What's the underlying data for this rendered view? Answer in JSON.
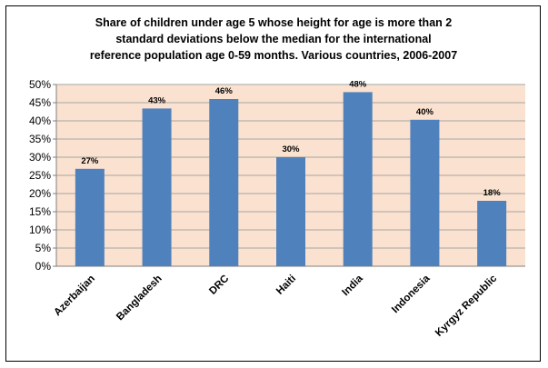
{
  "chart_data": {
    "type": "bar",
    "title_lines": [
      "Share of children under age 5 whose height for age is more than 2",
      "standard deviations below the median for the international",
      "reference population age 0-59 months. Various countries, 2006-2007"
    ],
    "categories": [
      "Azerbaijan",
      "Bangladesh",
      "DRC",
      "Haiti",
      "India",
      "Indonesia",
      "Kyrgyz Republic"
    ],
    "values": [
      0.268,
      0.434,
      0.46,
      0.3,
      0.479,
      0.403,
      0.18
    ],
    "data_labels": [
      "27%",
      "43%",
      "46%",
      "30%",
      "48%",
      "40%",
      "18%"
    ],
    "y_ticks": [
      0,
      0.05,
      0.1,
      0.15,
      0.2,
      0.25,
      0.3,
      0.35,
      0.4,
      0.45,
      0.5
    ],
    "y_tick_labels": [
      "0%",
      "5%",
      "10%",
      "15%",
      "20%",
      "25%",
      "30%",
      "35%",
      "40%",
      "45%",
      "50%"
    ],
    "ylim": [
      0,
      0.5
    ],
    "grid": true,
    "legend": false,
    "colors": {
      "bar": "#4f81bd",
      "plot_background": "#fbe1cf",
      "gridline": "#a6a6a6"
    }
  }
}
